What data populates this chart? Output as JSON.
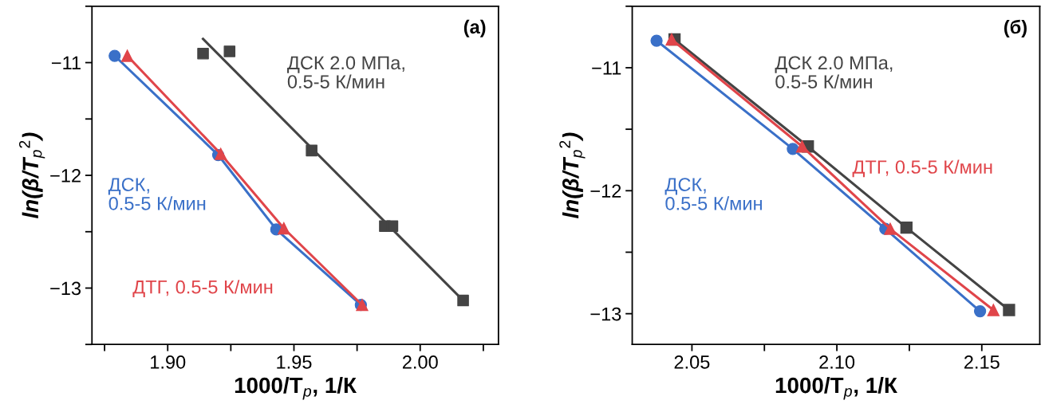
{
  "chart_data": [
    {
      "type": "line",
      "title": "(a)",
      "xlabel": "1000/T$_{p}$, 1/К",
      "ylabel": "ln(β/T$_{p}$$^{2}$)",
      "xlim": [
        1.87,
        2.031
      ],
      "xticks": [
        {
          "value": 1.9,
          "label": "1.90"
        },
        1.95,
        {
          "value": 2.0,
          "label": "2.00"
        }
      ],
      "ylim": [
        -13.5,
        -10.5
      ],
      "yticks": [
        -13,
        -12,
        -11
      ],
      "grid": false,
      "legend": false,
      "series": [
        {
          "name": "ДСК 2.0 МПа,\n0.5-5 К/мин",
          "type": "scatter",
          "marker": "square",
          "color": "#444444",
          "x": [
            1.914,
            1.9245,
            1.957,
            1.986,
            1.989,
            2.017
          ],
          "values": [
            -10.92,
            -10.9,
            -11.78,
            -12.45,
            -12.45,
            -13.11
          ]
        },
        {
          "marker": "none",
          "color": "#444444",
          "x": [
            1.914,
            2.017
          ],
          "values": [
            -10.79,
            -13.11
          ]
        },
        {
          "name": "ДСК,\n0.5-5 К/мин",
          "marker": "circle",
          "color": "#3a70c8",
          "x": [
            1.879,
            1.92,
            1.943,
            1.9765
          ],
          "values": [
            -10.94,
            -11.82,
            -12.48,
            -13.15
          ]
        },
        {
          "name": "ДТГ, 0.5-5 К/мин",
          "marker": "triangle",
          "color": "#e0454a",
          "x": [
            1.884,
            1.921,
            1.946,
            1.977
          ],
          "values": [
            -10.94,
            -11.81,
            -12.47,
            -13.15
          ]
        }
      ]
    },
    {
      "type": "line",
      "title": "(б)",
      "xlabel": "1000/T$_{p}$, 1/К",
      "ylabel": "ln(β/T$_{p}$$^{2}$)",
      "xlim": [
        2.0294,
        2.17
      ],
      "xticks": [
        2.05,
        {
          "value": 2.1,
          "label": "2.10"
        },
        2.15
      ],
      "ylim": [
        -13.25,
        -10.5
      ],
      "yticks": [
        -13,
        -12,
        -11
      ],
      "grid": false,
      "legend": false,
      "series": [
        {
          "name": "ДСК 2.0 МПа,\n0.5-5 К/мин",
          "marker": "square",
          "color": "#444444",
          "x": [
            2.044,
            2.09,
            2.124,
            2.1594
          ],
          "values": [
            -10.77,
            -11.64,
            -12.3,
            -12.97
          ]
        },
        {
          "name": "ДСК,\n0.5-5 К/мин",
          "marker": "circle",
          "color": "#3a70c8",
          "x": [
            2.0378,
            2.0848,
            2.1167,
            2.1494
          ],
          "values": [
            -10.78,
            -11.66,
            -12.31,
            -12.98
          ]
        },
        {
          "name": "ДТГ, 0.5-5 К/мин",
          "marker": "triangle",
          "color": "#e0454a",
          "x": [
            2.043,
            2.088,
            2.1184,
            2.154
          ],
          "values": [
            -10.77,
            -11.64,
            -12.31,
            -12.97
          ]
        }
      ]
    }
  ]
}
